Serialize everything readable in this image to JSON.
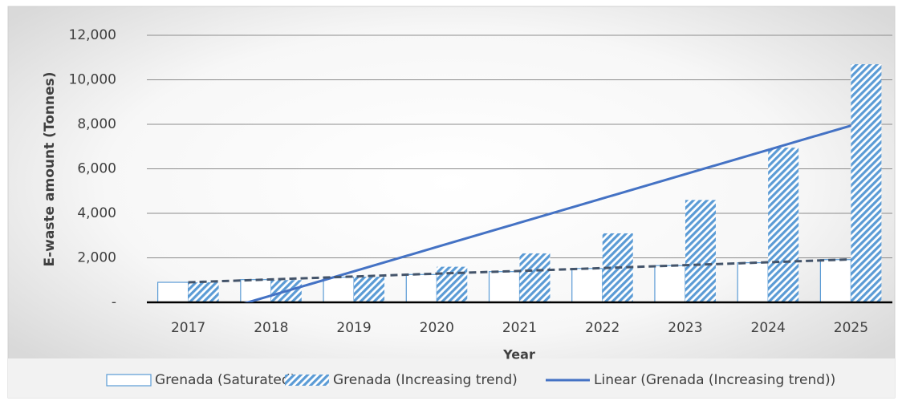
{
  "chart_data": {
    "type": "bar",
    "x_label": "Year",
    "y_label": "E-waste amount (Tonnes)",
    "categories": [
      "2017",
      "2018",
      "2019",
      "2020",
      "2021",
      "2022",
      "2023",
      "2024",
      "2025"
    ],
    "series": [
      {
        "name": "Grenada (Saturated)",
        "kind": "bar",
        "style": "outline",
        "color": "#5b9bd5",
        "values": [
          900,
          1020,
          1130,
          1250,
          1380,
          1520,
          1650,
          1780,
          1920
        ]
      },
      {
        "name": "Grenada (Increasing trend)",
        "kind": "bar",
        "style": "hatch",
        "color": "#5b9bd5",
        "values": [
          900,
          1000,
          1150,
          1600,
          2200,
          3100,
          4600,
          6950,
          10700
        ]
      },
      {
        "name": "Linear (Grenada (Increasing trend))",
        "kind": "line",
        "style": "solid",
        "color": "#4472c4",
        "values": [
          -785,
          305,
          1396,
          2487,
          3578,
          4668,
          5759,
          6850,
          7941
        ]
      },
      {
        "kind": "line",
        "style": "dashed",
        "color": "#44546a",
        "values": [
          900,
          1030,
          1160,
          1290,
          1410,
          1540,
          1670,
          1800,
          1930
        ]
      }
    ],
    "ylim": [
      0,
      12000
    ],
    "yticks": [
      {
        "value": 0,
        "label": "-"
      },
      {
        "value": 2000,
        "label": "2,000"
      },
      {
        "value": 4000,
        "label": "4,000"
      },
      {
        "value": 6000,
        "label": "6,000"
      },
      {
        "value": 8000,
        "label": "8,000"
      },
      {
        "value": 10000,
        "label": "10,000"
      },
      {
        "value": 12000,
        "label": "12,000"
      }
    ],
    "grid": true,
    "legend": "bottom"
  }
}
